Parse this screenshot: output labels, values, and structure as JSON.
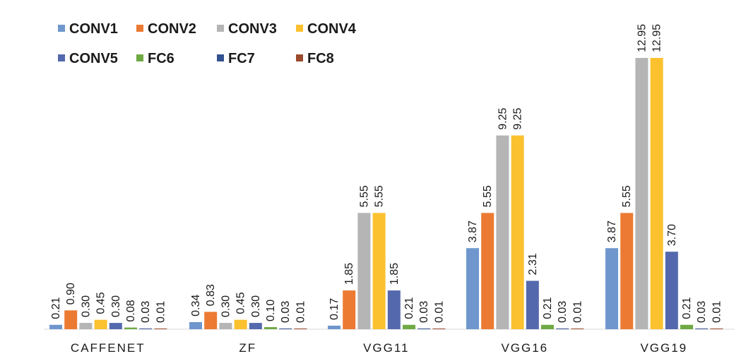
{
  "chart_data": {
    "type": "bar",
    "title": "",
    "xlabel": "",
    "ylabel": "",
    "ylim": [
      0,
      13
    ],
    "grid": false,
    "legend_position": "top-left",
    "categories": [
      "CAFFENET",
      "ZF",
      "VGG11",
      "VGG16",
      "VGG19"
    ],
    "series": [
      {
        "name": "CONV1",
        "color": "#6f97cd",
        "values": [
          0.21,
          0.34,
          0.17,
          3.87,
          3.87
        ],
        "labels": [
          "0.21",
          "0.34",
          "0.17",
          "3.87",
          "3.87"
        ]
      },
      {
        "name": "CONV2",
        "color": "#ec7a33",
        "values": [
          0.9,
          0.83,
          1.85,
          5.55,
          5.55
        ],
        "labels": [
          "0.90",
          "0.83",
          "1.85",
          "5.55",
          "5.55"
        ]
      },
      {
        "name": "CONV3",
        "color": "#b5b5b5",
        "values": [
          0.3,
          0.3,
          5.55,
          9.25,
          12.95
        ],
        "labels": [
          "0.30",
          "0.30",
          "5.55",
          "9.25",
          "12.95"
        ]
      },
      {
        "name": "CONV4",
        "color": "#fbc12f",
        "values": [
          0.45,
          0.45,
          5.55,
          9.25,
          12.95
        ],
        "labels": [
          "0.45",
          "0.45",
          "5.55",
          "9.25",
          "12.95"
        ]
      },
      {
        "name": "CONV5",
        "color": "#5469ad",
        "values": [
          0.3,
          0.3,
          1.85,
          2.31,
          3.7
        ],
        "labels": [
          "0.30",
          "0.30",
          "1.85",
          "2.31",
          "3.70"
        ]
      },
      {
        "name": "FC6",
        "color": "#6fa944",
        "values": [
          0.08,
          0.1,
          0.21,
          0.21,
          0.21
        ],
        "labels": [
          "0.08",
          "0.10",
          "0.21",
          "0.21",
          "0.21"
        ]
      },
      {
        "name": "FC7",
        "color": "#34518f",
        "values": [
          0.03,
          0.03,
          0.03,
          0.03,
          0.03
        ],
        "labels": [
          "0.03",
          "0.03",
          "0.03",
          "0.03",
          "0.03"
        ]
      },
      {
        "name": "FC8",
        "color": "#9c4a2c",
        "values": [
          0.01,
          0.01,
          0.01,
          0.01,
          0.01
        ],
        "labels": [
          "0.01",
          "0.01",
          "0.01",
          "0.01",
          "0.01"
        ]
      }
    ]
  }
}
